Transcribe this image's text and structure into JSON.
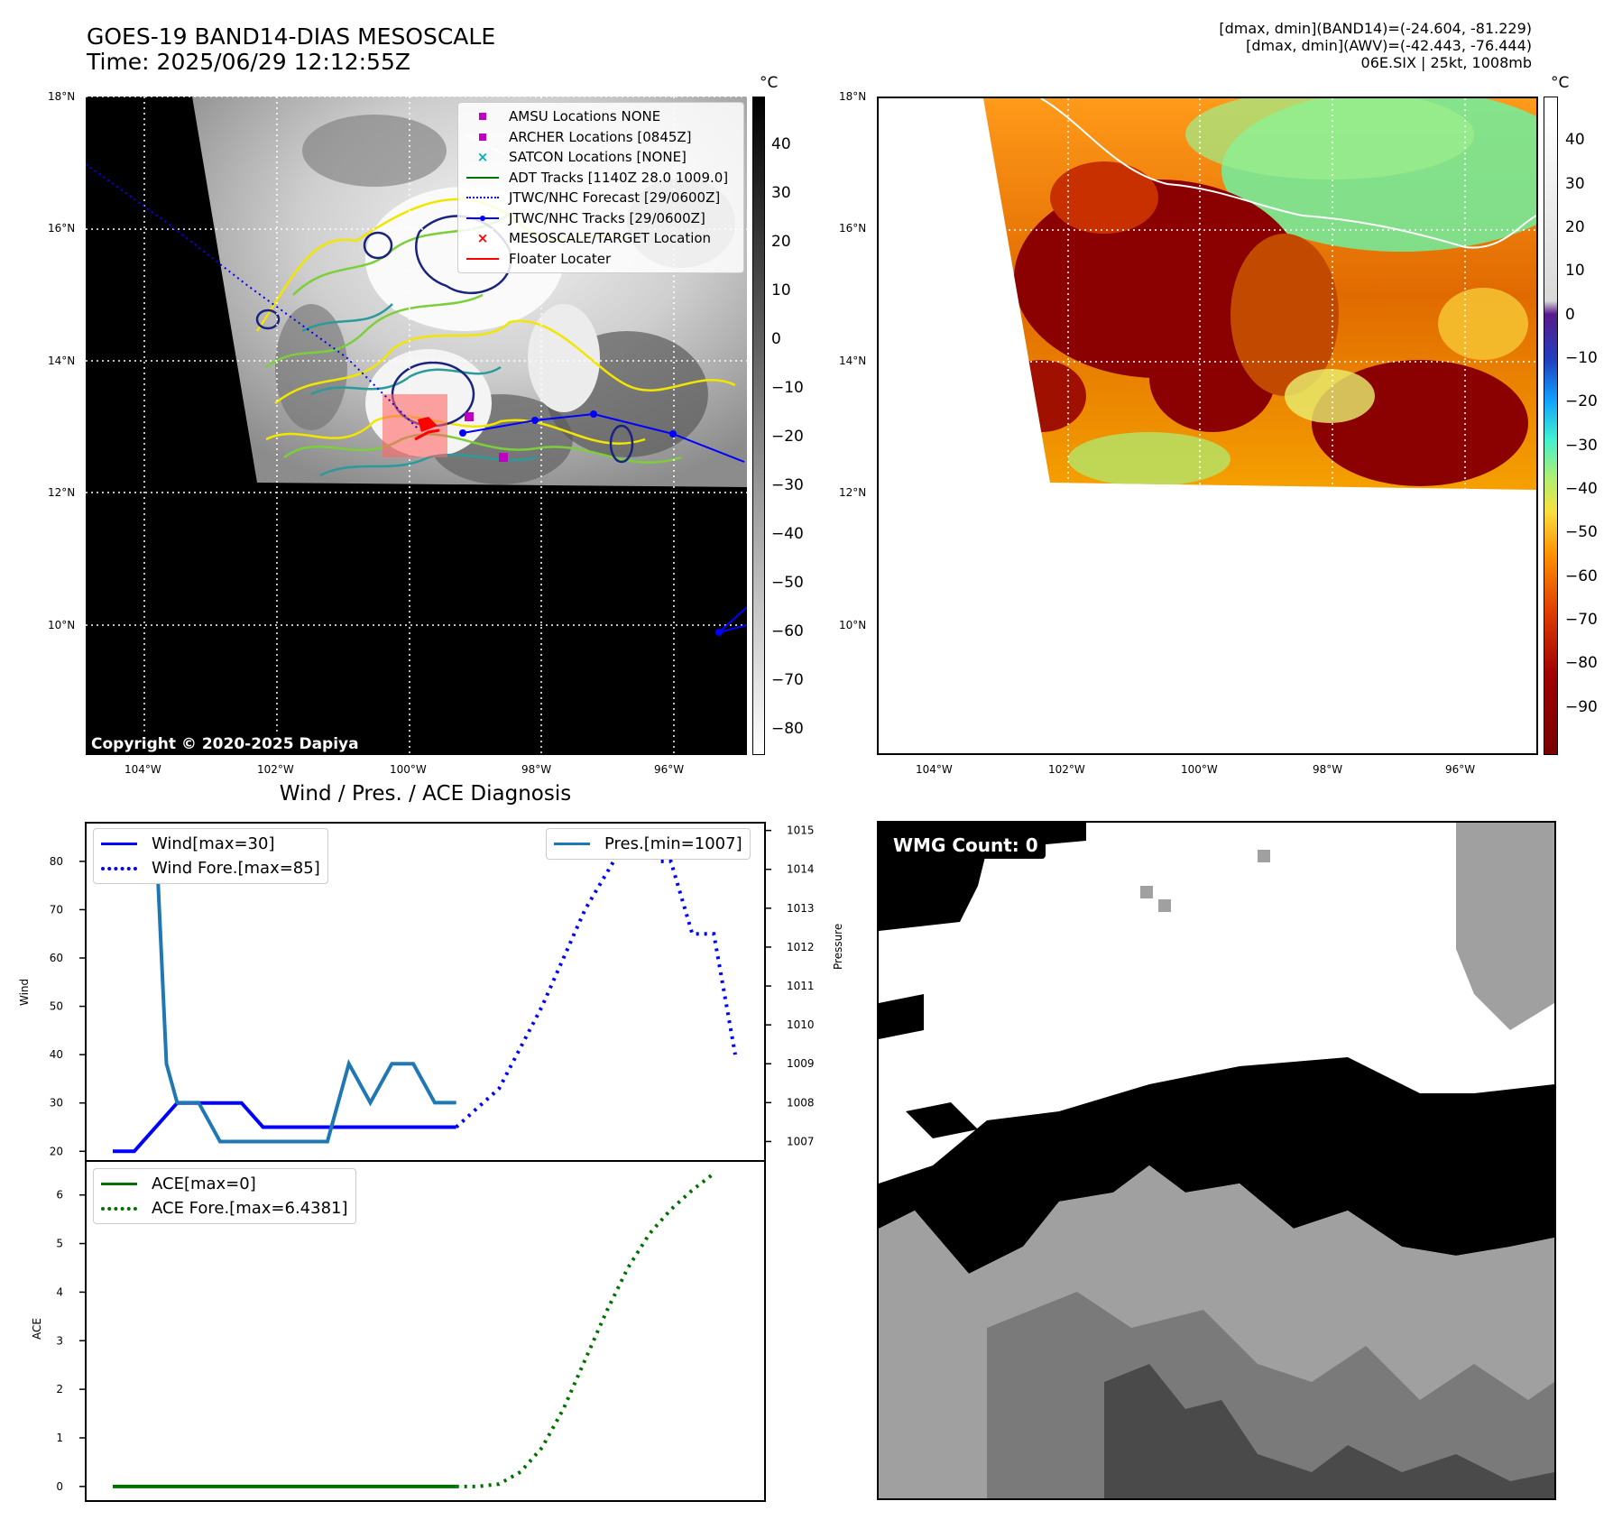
{
  "header": {
    "title_line1": "GOES-19 BAND14-DIAS MESOSCALE",
    "title_line2": "Time: 2025/06/29 12:12:55Z",
    "info_line1": "[dmax, dmin](BAND14)=(-24.604, -81.229)",
    "info_line2": "[dmax, dmin](AWV)=(-42.443, -76.444)",
    "info_line3": "06E.SIX | 25kt, 1008mb"
  },
  "map": {
    "lat_labels": [
      "18°N",
      "16°N",
      "14°N",
      "12°N",
      "10°N"
    ],
    "lon_labels": [
      "104°W",
      "102°W",
      "100°W",
      "98°W",
      "96°W"
    ],
    "copyright": "Copyright © 2020-2025 Dapiya",
    "legend": [
      {
        "label": "AMSU Locations NONE",
        "symbol": "square",
        "color": "#c000c0"
      },
      {
        "label": "ARCHER Locations [0845Z]",
        "symbol": "square",
        "color": "#c000c0"
      },
      {
        "label": "SATCON Locations [NONE]",
        "symbol": "x",
        "color": "#00b0b0"
      },
      {
        "label": "ADT Tracks [1140Z 28.0 1009.0]",
        "symbol": "line",
        "color": "#007000"
      },
      {
        "label": "JTWC/NHC Forecast [29/0600Z]",
        "symbol": "dotted",
        "color": "#0000ff"
      },
      {
        "label": "JTWC/NHC Tracks [29/0600Z]",
        "symbol": "line-dot",
        "color": "#0000ff"
      },
      {
        "label": "MESOSCALE/TARGET Location",
        "symbol": "x",
        "color": "#ff0000"
      },
      {
        "label": "Floater Locater",
        "symbol": "line",
        "color": "#ff0000"
      }
    ]
  },
  "colorbar_left": {
    "unit": "°C",
    "ticks": [
      "40",
      "30",
      "20",
      "10",
      "0",
      "−10",
      "−20",
      "−30",
      "−40",
      "−50",
      "−60",
      "−70",
      "−80"
    ]
  },
  "colorbar_right": {
    "unit": "°C",
    "ticks": [
      "40",
      "30",
      "20",
      "10",
      "0",
      "−10",
      "−20",
      "−30",
      "−40",
      "−50",
      "−60",
      "−70",
      "−80",
      "−90"
    ]
  },
  "diagnosis": {
    "title": "Wind / Pres. / ACE Diagnosis",
    "wind_ylabel": "Wind",
    "pressure_ylabel": "Pressure",
    "ace_ylabel": "ACE",
    "legend_wind": "Wind[max=30]",
    "legend_wind_fore": "Wind Fore.[max=85]",
    "legend_pres": "Pres.[min=1007]",
    "legend_ace": "ACE[max=0]",
    "legend_ace_fore": "ACE Fore.[max=6.4381]"
  },
  "wmg": {
    "label": "WMG Count: 0"
  },
  "chart_data": [
    {
      "type": "line",
      "title": "Wind / Pres. / ACE Diagnosis",
      "ylabel": "Wind",
      "ylim": [
        18,
        88
      ],
      "yticks": [
        20,
        30,
        40,
        50,
        60,
        70,
        80
      ],
      "xlim": [
        0,
        29
      ],
      "series": [
        {
          "name": "Wind[max=30]",
          "color": "#0000ff",
          "style": "solid",
          "x": [
            0,
            1,
            3,
            6,
            7,
            16
          ],
          "y": [
            20,
            20,
            30,
            30,
            25,
            25
          ]
        },
        {
          "name": "Wind Fore.[max=85]",
          "color": "#0000ff",
          "style": "dotted",
          "x": [
            16,
            18,
            20,
            22,
            24,
            25.5,
            26,
            27,
            28,
            29
          ],
          "y": [
            25,
            33,
            50,
            70,
            85,
            80,
            80,
            65,
            65,
            40
          ]
        }
      ]
    },
    {
      "type": "line",
      "ylabel": "Pressure",
      "ylim": [
        1006.5,
        1015.2
      ],
      "yticks": [
        1007,
        1008,
        1009,
        1010,
        1011,
        1012,
        1013,
        1014,
        1015
      ],
      "xlim": [
        0,
        29
      ],
      "series": [
        {
          "name": "Pres.[min=1007]",
          "color": "#1f77b4",
          "style": "solid",
          "x": [
            0,
            2,
            2.5,
            3,
            4,
            5,
            10,
            11,
            12,
            13,
            14,
            15,
            16
          ],
          "y": [
            1015,
            1015,
            1009,
            1008,
            1008,
            1007,
            1007,
            1009,
            1008,
            1009,
            1009,
            1008,
            1008
          ]
        }
      ]
    },
    {
      "type": "line",
      "ylabel": "ACE",
      "ylim": [
        -0.3,
        6.7
      ],
      "yticks": [
        0,
        1,
        2,
        3,
        4,
        5,
        6
      ],
      "xlim": [
        0,
        29
      ],
      "series": [
        {
          "name": "ACE[max=0]",
          "color": "#007000",
          "style": "solid",
          "x": [
            0,
            16
          ],
          "y": [
            0,
            0
          ]
        },
        {
          "name": "ACE Fore.[max=6.4381]",
          "color": "#007000",
          "style": "dotted",
          "x": [
            16,
            17,
            18,
            19,
            20,
            21,
            22,
            23,
            24,
            25,
            26,
            27,
            28
          ],
          "y": [
            0,
            0,
            0.05,
            0.3,
            0.8,
            1.6,
            2.6,
            3.6,
            4.5,
            5.2,
            5.7,
            6.1,
            6.44
          ]
        }
      ]
    }
  ]
}
